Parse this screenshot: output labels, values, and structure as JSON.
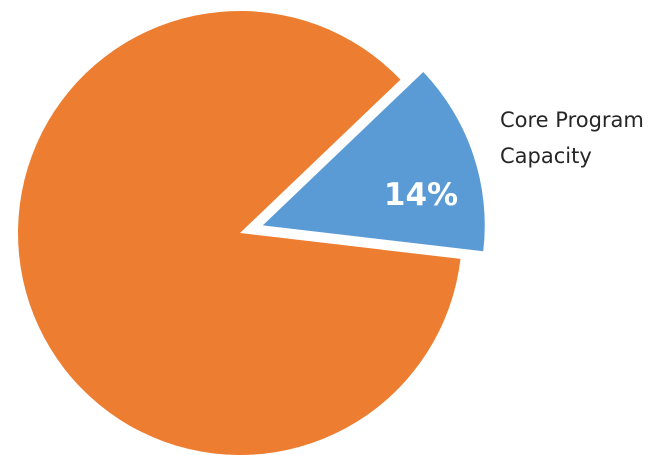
{
  "chart_data": {
    "type": "pie",
    "title": "",
    "slices": [
      {
        "label": "",
        "value": 86,
        "color": "#ED7D31",
        "data_label": "",
        "exploded": false
      },
      {
        "label": "Core Program Capacity",
        "value": 14,
        "color": "#5B9BD5",
        "data_label": "14%",
        "exploded": true
      }
    ],
    "legend": "none"
  },
  "labels": {
    "core_program_line1": "Core Program",
    "core_program_line2": "Capacity",
    "core_program_pct": "14%"
  }
}
